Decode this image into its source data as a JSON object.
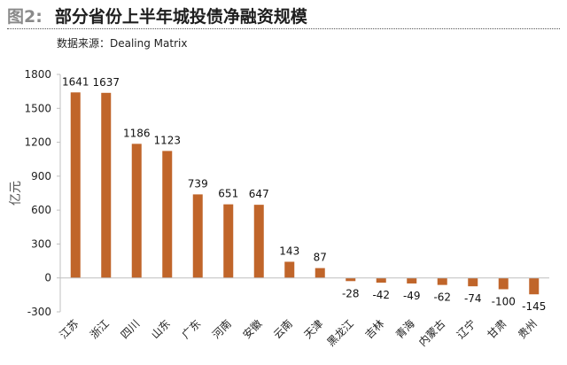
{
  "figure": {
    "label": "图2:",
    "title": "部分省份上半年城投债净融资规模",
    "source": "数据来源：Dealing Matrix"
  },
  "chart_data": {
    "type": "bar",
    "categories": [
      "江苏",
      "浙江",
      "四川",
      "山东",
      "广东",
      "河南",
      "安徽",
      "云南",
      "天津",
      "黑龙江",
      "吉林",
      "青海",
      "内蒙古",
      "辽宁",
      "甘肃",
      "贵州"
    ],
    "values": [
      1641,
      1637,
      1186,
      1123,
      739,
      651,
      647,
      143,
      87,
      -28,
      -42,
      -49,
      -62,
      -74,
      -100,
      -145
    ],
    "ylabel": "亿元",
    "ylim": [
      -300,
      1800
    ],
    "yticks": [
      -300,
      0,
      300,
      600,
      900,
      1200,
      1500,
      1800
    ],
    "grid": false,
    "bar_color": "#c0652a",
    "axis_color": "#bfbfbf"
  }
}
